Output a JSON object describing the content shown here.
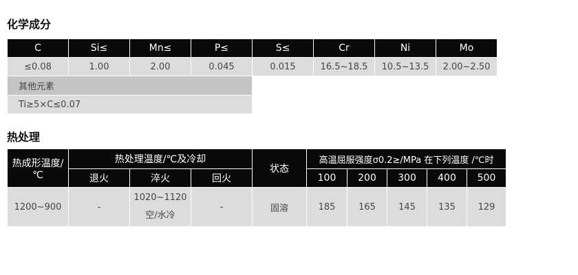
{
  "chem": {
    "title": "化学成分",
    "headers": [
      "C",
      "Si≤",
      "Mn≤",
      "P≤",
      "S≤",
      "Cr",
      "Ni",
      "Mo"
    ],
    "values": [
      "≤0.08",
      "1.00",
      "2.00",
      "0.045",
      "0.015",
      "16.5~18.5",
      "10.5~13.5",
      "2.00~2.50"
    ],
    "other_label": "其他元素",
    "other_value": "Ti≥5×C≤0.07"
  },
  "heat": {
    "title": "热处理",
    "col_forming": "热成形温度/℃",
    "col_treatment": "热处理温度/℃及冷却",
    "sub_treatment": [
      "退火",
      "淬火",
      "回火"
    ],
    "col_state": "状态",
    "col_yield": "高温屈服强度σ0.2≥/MPa 在下列温度 /℃时",
    "temps": [
      "100",
      "200",
      "300",
      "400",
      "500"
    ],
    "row": {
      "forming": "1200~900",
      "anneal": "-",
      "quench_temp": "1020~1120",
      "quench_cool": "空/水冷",
      "temper": "-",
      "state": "固溶",
      "yields": [
        "185",
        "165",
        "145",
        "135",
        "129"
      ]
    }
  }
}
